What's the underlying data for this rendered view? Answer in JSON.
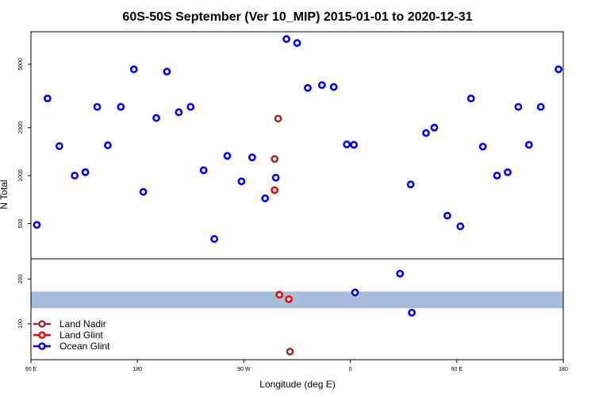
{
  "chart_data": {
    "type": "scatter",
    "title": "60S-50S September (Ver 10_MIP)   2015-01-01 to 2020-12-31",
    "xlabel": "Longitude (deg E)",
    "ylabel": "N Total",
    "x_ticks": [
      {
        "value": 90,
        "label": "90 E"
      },
      {
        "value": 180,
        "label": "180"
      },
      {
        "value": 270,
        "label": "90 W"
      },
      {
        "value": 360,
        "label": "0"
      },
      {
        "value": 450,
        "label": "90 E"
      },
      {
        "value": 540,
        "label": "180"
      }
    ],
    "xlim": [
      90,
      540
    ],
    "top_panel": {
      "y_scale": "log",
      "ylim": [
        300,
        8000
      ],
      "y_ticks": [
        {
          "value": 500,
          "label": "500"
        },
        {
          "value": 1000,
          "label": "1000"
        },
        {
          "value": 2000,
          "label": "2000"
        },
        {
          "value": 5000,
          "label": "5000"
        }
      ]
    },
    "bottom_panel": {
      "y_scale": "linear",
      "ylim": [
        20,
        245
      ],
      "y_ticks": [
        {
          "value": 100,
          "label": "100"
        },
        {
          "value": 200,
          "label": "200"
        }
      ],
      "band": {
        "from": 135,
        "to": 172,
        "color": "#a7bddd"
      }
    },
    "legend": {
      "position": "bottom-left",
      "entries": [
        {
          "label": "Land Nadir",
          "color": "#a52a2a"
        },
        {
          "label": "Land Glint",
          "color": "#ff0000"
        },
        {
          "label": "Ocean Glint",
          "color": "#0000ff"
        }
      ]
    },
    "series": [
      {
        "name": "Ocean Glint",
        "color": "#0000ff",
        "panel": "top",
        "points": [
          [
            95,
            490
          ],
          [
            104,
            3050
          ],
          [
            114,
            1530
          ],
          [
            127,
            1000
          ],
          [
            136,
            1050
          ],
          [
            146,
            2700
          ],
          [
            155,
            1550
          ],
          [
            166,
            2700
          ],
          [
            177,
            4650
          ],
          [
            185,
            790
          ],
          [
            196,
            2300
          ],
          [
            205,
            4500
          ],
          [
            215,
            2500
          ],
          [
            225,
            2700
          ],
          [
            236,
            1080
          ],
          [
            245,
            400
          ],
          [
            256,
            1330
          ],
          [
            268,
            920
          ],
          [
            277,
            1300
          ],
          [
            288,
            720
          ],
          [
            297,
            970
          ],
          [
            306,
            7200
          ],
          [
            315,
            6800
          ],
          [
            324,
            3550
          ],
          [
            336,
            3700
          ],
          [
            346,
            3600
          ],
          [
            357,
            1570
          ],
          [
            363,
            1560
          ],
          [
            411,
            880
          ],
          [
            424,
            1850
          ],
          [
            431,
            2000
          ],
          [
            442,
            560
          ],
          [
            453,
            480
          ],
          [
            462,
            3050
          ],
          [
            472,
            1520
          ],
          [
            484,
            1000
          ],
          [
            493,
            1050
          ],
          [
            502,
            2700
          ],
          [
            511,
            1560
          ],
          [
            521,
            2700
          ],
          [
            536,
            4650
          ]
        ]
      },
      {
        "name": "Land Nadir",
        "color": "#a52a2a",
        "panel": "top",
        "points": [
          [
            296,
            1270
          ],
          [
            299,
            2280
          ]
        ]
      },
      {
        "name": "Land Glint",
        "color": "#ff0000",
        "panel": "top",
        "points": [
          [
            296,
            810
          ]
        ]
      },
      {
        "name": "Ocean Glint",
        "color": "#0000ff",
        "panel": "bottom",
        "points": [
          [
            364,
            170
          ],
          [
            402,
            212
          ],
          [
            412,
            125
          ]
        ]
      },
      {
        "name": "Land Nadir",
        "color": "#a52a2a",
        "panel": "bottom",
        "points": [
          [
            309,
            38
          ]
        ]
      },
      {
        "name": "Land Glint",
        "color": "#ff0000",
        "panel": "bottom",
        "points": [
          [
            300,
            165
          ],
          [
            308,
            155
          ]
        ]
      }
    ]
  }
}
